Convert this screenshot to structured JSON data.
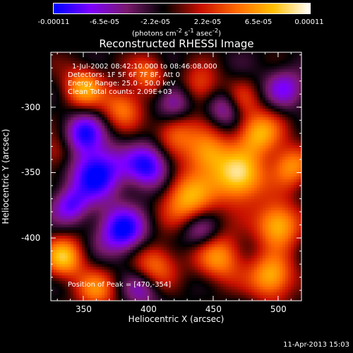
{
  "colorbar": {
    "tick_labels": [
      "-0.00011",
      "-6.5e-05",
      "-2.2e-05",
      "2.2e-05",
      "6.5e-05",
      "0.00011"
    ],
    "tick_values": [
      -0.00011,
      -6.5e-05,
      -2.2e-05,
      2.2e-05,
      6.5e-05,
      0.00011
    ],
    "range": [
      -0.00011,
      0.00011
    ],
    "label_prefix": "(photons cm",
    "label_exp1": "-2",
    "label_mid": " s",
    "label_exp2": "-1",
    "label_mid2": " asec",
    "label_exp3": "-2",
    "label_suffix": ")",
    "colors": [
      "#0000ff",
      "#7f00ff",
      "#7a1a6e",
      "#000000",
      "#c81000",
      "#ff6a00",
      "#ffc000",
      "#ffffff"
    ]
  },
  "chart_data": {
    "type": "heatmap",
    "title": "Reconstructed RHESSI Image",
    "xlabel": "Heliocentric X (arcsec)",
    "ylabel": "Heliocentric Y (arcsec)",
    "xlim": [
      325,
      518
    ],
    "ylim": [
      -448,
      -258
    ],
    "x_ticks": [
      350,
      400,
      450,
      500
    ],
    "y_ticks": [
      -300,
      -350,
      -400
    ],
    "peak": [
      470,
      -354
    ],
    "blobs": [
      {
        "x": 470,
        "y": -354,
        "a": 1.0,
        "s": 14
      },
      {
        "x": 500,
        "y": -390,
        "a": 0.9,
        "s": 12
      },
      {
        "x": 430,
        "y": -370,
        "a": 0.8,
        "s": 14
      },
      {
        "x": 445,
        "y": -335,
        "a": 0.75,
        "s": 12
      },
      {
        "x": 485,
        "y": -320,
        "a": 0.8,
        "s": 12
      },
      {
        "x": 510,
        "y": -345,
        "a": 0.7,
        "s": 11
      },
      {
        "x": 455,
        "y": -415,
        "a": 0.7,
        "s": 13
      },
      {
        "x": 495,
        "y": -430,
        "a": 0.85,
        "s": 12
      },
      {
        "x": 405,
        "y": -420,
        "a": 0.6,
        "s": 12
      },
      {
        "x": 420,
        "y": -320,
        "a": 0.55,
        "s": 11
      },
      {
        "x": 380,
        "y": -300,
        "a": 0.6,
        "s": 11
      },
      {
        "x": 350,
        "y": -285,
        "a": 0.75,
        "s": 11
      },
      {
        "x": 335,
        "y": -415,
        "a": 0.85,
        "s": 11
      },
      {
        "x": 360,
        "y": -440,
        "a": 0.6,
        "s": 11
      },
      {
        "x": 400,
        "y": -275,
        "a": 0.55,
        "s": 10
      },
      {
        "x": 440,
        "y": -285,
        "a": 0.5,
        "s": 11
      },
      {
        "x": 330,
        "y": -335,
        "a": 0.4,
        "s": 10
      },
      {
        "x": 470,
        "y": -295,
        "a": 0.45,
        "s": 10
      },
      {
        "x": 360,
        "y": -350,
        "a": -0.9,
        "s": 14
      },
      {
        "x": 380,
        "y": -395,
        "a": -0.85,
        "s": 13
      },
      {
        "x": 400,
        "y": -345,
        "a": -0.8,
        "s": 12
      },
      {
        "x": 350,
        "y": -320,
        "a": -0.7,
        "s": 11
      },
      {
        "x": 340,
        "y": -375,
        "a": -0.6,
        "s": 10
      },
      {
        "x": 460,
        "y": -300,
        "a": -0.6,
        "s": 10
      },
      {
        "x": 505,
        "y": -285,
        "a": -0.5,
        "s": 11
      },
      {
        "x": 440,
        "y": -395,
        "a": -0.45,
        "s": 10
      },
      {
        "x": 395,
        "y": -440,
        "a": -0.45,
        "s": 10
      },
      {
        "x": 420,
        "y": -295,
        "a": -0.55,
        "s": 10
      }
    ]
  },
  "annotations": {
    "time_range": "1-Jul-2002 08:42:10.000 to 08:46:08.000",
    "detectors": "Detectors: 1F 5F 6F 7F 8F, Att 0",
    "energy": "Energy Range: 25.0 - 50.0 keV",
    "clean": "Clean   Total counts: 2.09E+03",
    "peak_text": "Position of Peak = [470,-354]"
  },
  "timestamp": "11-Apr-2013 15:03"
}
